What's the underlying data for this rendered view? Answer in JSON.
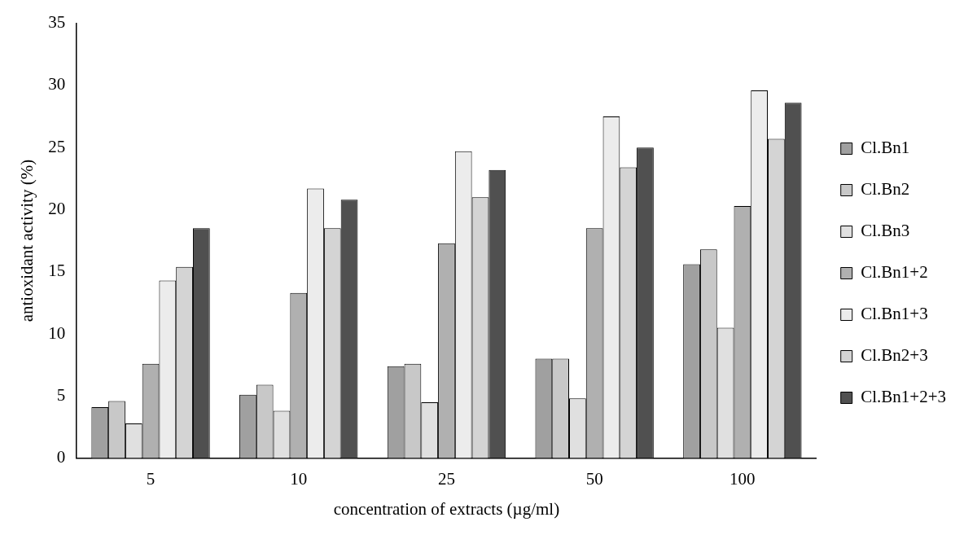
{
  "chart_data": {
    "type": "bar",
    "xlabel": "concentration of extracts (µg/ml)",
    "ylabel": "antioxidant activity (%)",
    "categories": [
      "5",
      "10",
      "25",
      "50",
      "100"
    ],
    "series": [
      {
        "name": "Cl.Bn1",
        "color": "#a0a0a0",
        "values": [
          4.1,
          5.1,
          7.4,
          8.0,
          15.6
        ]
      },
      {
        "name": "Cl.Bn2",
        "color": "#c8c8c8",
        "values": [
          4.6,
          5.9,
          7.6,
          8.0,
          16.8
        ]
      },
      {
        "name": "Cl.Bn3",
        "color": "#e0e0e0",
        "values": [
          2.8,
          3.8,
          4.5,
          4.8,
          10.5
        ]
      },
      {
        "name": "Cl.Bn1+2",
        "color": "#b0b0b0",
        "values": [
          7.6,
          13.3,
          17.3,
          18.5,
          20.3
        ]
      },
      {
        "name": "Cl.Bn1+3",
        "color": "#ececec",
        "values": [
          14.3,
          21.7,
          24.7,
          27.5,
          29.6
        ]
      },
      {
        "name": "Cl.Bn2+3",
        "color": "#d4d4d4",
        "values": [
          15.4,
          18.5,
          21.0,
          23.4,
          25.7
        ]
      },
      {
        "name": "Cl.Bn1+2+3",
        "color": "#505050",
        "values": [
          18.5,
          20.8,
          23.2,
          25.0,
          28.6
        ]
      }
    ],
    "ylim": [
      0,
      35
    ],
    "yticks": [
      0,
      5,
      10,
      15,
      20,
      25,
      30,
      35
    ],
    "grid": false,
    "legend": "right"
  }
}
